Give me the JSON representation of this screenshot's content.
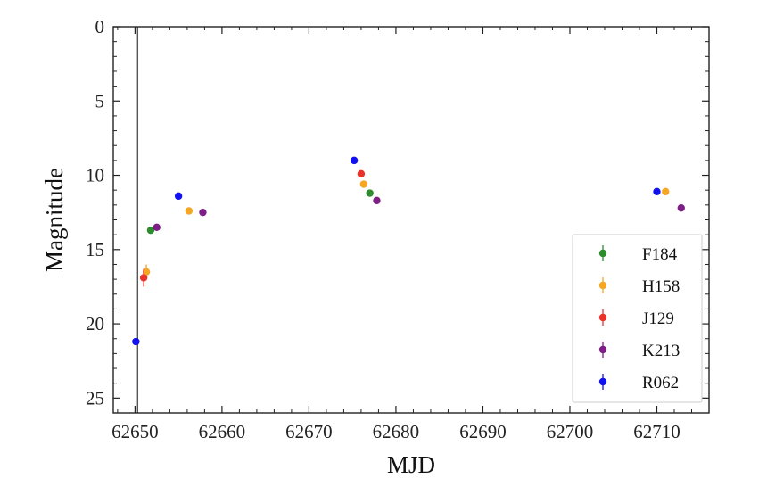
{
  "chart_data": {
    "type": "scatter",
    "xlabel": "MJD",
    "ylabel": "Magnitude",
    "xlim": [
      62647.5,
      62716
    ],
    "ylim": [
      26,
      0
    ],
    "y_inverted": true,
    "x_ticks": [
      62650,
      62660,
      62670,
      62680,
      62690,
      62700,
      62710
    ],
    "y_ticks": [
      0,
      5,
      10,
      15,
      20,
      25
    ],
    "vertical_line": {
      "x": 62650.3,
      "color": "#555555"
    },
    "legend_position": "lower right",
    "series": [
      {
        "name": "F184",
        "color": "#2e8b2e",
        "points": [
          {
            "x": 62651.8,
            "y": 13.7
          },
          {
            "x": 62677.0,
            "y": 11.2
          }
        ]
      },
      {
        "name": "H158",
        "color": "#f5a623",
        "points": [
          {
            "x": 62651.3,
            "y": 16.5,
            "err": 0.5
          },
          {
            "x": 62656.2,
            "y": 12.4
          },
          {
            "x": 62676.3,
            "y": 10.6
          },
          {
            "x": 62711.0,
            "y": 11.1
          }
        ]
      },
      {
        "name": "J129",
        "color": "#e8322a",
        "points": [
          {
            "x": 62651.0,
            "y": 16.9,
            "err": 0.6
          },
          {
            "x": 62676.0,
            "y": 9.9
          }
        ]
      },
      {
        "name": "K213",
        "color": "#7d1f86",
        "points": [
          {
            "x": 62652.5,
            "y": 13.5
          },
          {
            "x": 62657.8,
            "y": 12.5
          },
          {
            "x": 62677.8,
            "y": 11.7
          },
          {
            "x": 62712.8,
            "y": 12.2
          }
        ]
      },
      {
        "name": "R062",
        "color": "#1010f0",
        "points": [
          {
            "x": 62650.1,
            "y": 21.2
          },
          {
            "x": 62655.0,
            "y": 11.4
          },
          {
            "x": 62675.2,
            "y": 9.0
          },
          {
            "x": 62710.0,
            "y": 11.1
          }
        ]
      }
    ]
  }
}
